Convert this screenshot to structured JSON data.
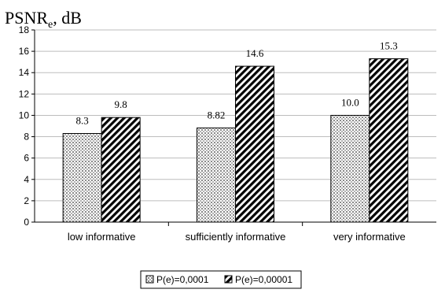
{
  "chart_data": {
    "type": "bar",
    "ylabel_main": "PSNR",
    "ylabel_sub": "e",
    "ylabel_unit": ", dB",
    "xlabel": "",
    "ylim": [
      0,
      18
    ],
    "yticks": [
      0,
      2,
      4,
      6,
      8,
      10,
      12,
      14,
      16,
      18
    ],
    "grid": true,
    "legend_position": "bottom",
    "categories": [
      "low informative",
      "sufficiently informative",
      "very informative"
    ],
    "series": [
      {
        "name": "P(e)=0,0001",
        "pattern": "dots",
        "values": [
          8.3,
          8.82,
          10.0
        ],
        "labels": [
          "8.3",
          "8.82",
          "10.0"
        ]
      },
      {
        "name": "P(e)=0,00001",
        "pattern": "diagonal-stripes",
        "values": [
          9.8,
          14.6,
          15.3
        ],
        "labels": [
          "9.8",
          "14.6",
          "15.3"
        ]
      }
    ]
  }
}
